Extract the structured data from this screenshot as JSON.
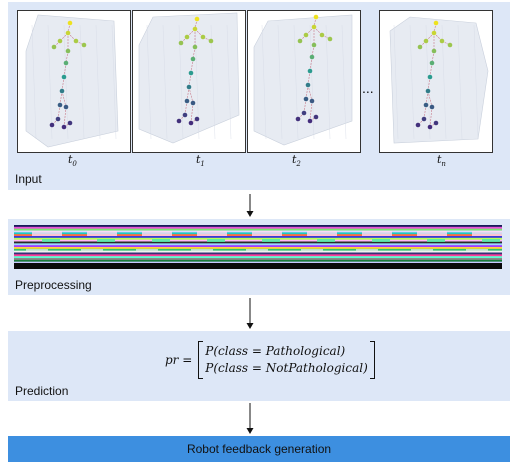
{
  "input": {
    "label": "Input",
    "frames": [
      {
        "t": "t",
        "sub": "0"
      },
      {
        "t": "t",
        "sub": "1"
      },
      {
        "t": "t",
        "sub": "2"
      },
      {
        "t": "t",
        "sub": "n"
      }
    ],
    "ellipsis": "..."
  },
  "preprocessing": {
    "label": "Preprocessing"
  },
  "prediction": {
    "label": "Prediction",
    "formula_lhs": "pr =",
    "row1": "P(class = Pathological)",
    "row2": "P(class = NotPathological)"
  },
  "feedback": {
    "label": "Robot feedback generation"
  },
  "colors": {
    "panel_bg": "#dde7f7",
    "feedback_bg": "#3d8fe0",
    "skeleton_top": "#f5e51b",
    "skeleton_mid": "#2a9d8f",
    "skeleton_bottom": "#46247a"
  }
}
